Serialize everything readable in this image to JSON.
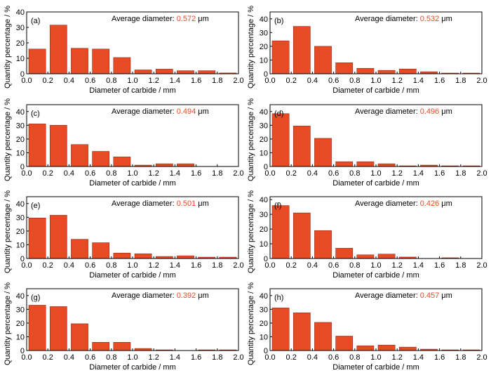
{
  "figure": {
    "bar_color": "#e84a24",
    "value_color": "#e84a24",
    "axis_color": "#000000"
  },
  "chart_data": [
    {
      "type": "bar",
      "panel_label": "(a)",
      "title": "",
      "xlabel": "Diameter of carbide / mm",
      "ylabel": "Quantity percentage / %",
      "xlim": [
        0,
        2.0
      ],
      "ylim": [
        0,
        40
      ],
      "bin_width": 0.2,
      "x": [
        0.1,
        0.3,
        0.5,
        0.7,
        0.9,
        1.1,
        1.3,
        1.5,
        1.7,
        1.9
      ],
      "values": [
        16,
        31.5,
        16.5,
        16,
        10.5,
        2.5,
        3,
        2,
        2,
        0.5
      ],
      "xticks": [
        "0.0",
        "0.2",
        "0.4",
        "0.6",
        "0.8",
        "1.0",
        "1.2",
        "1.4",
        "1.6",
        "1.8",
        "2.0"
      ],
      "yticks": [
        "0",
        "10",
        "20",
        "30",
        "40"
      ],
      "annotation": {
        "label": "Average diameter: ",
        "value": "0.572",
        "unit": "μm"
      }
    },
    {
      "type": "bar",
      "panel_label": "(b)",
      "title": "",
      "xlabel": "Diameter of carbide / mm",
      "ylabel": "Quantity percentage / %",
      "xlim": [
        0,
        2.0
      ],
      "ylim": [
        0,
        45
      ],
      "bin_width": 0.2,
      "x": [
        0.1,
        0.3,
        0.5,
        0.7,
        0.9,
        1.1,
        1.3,
        1.5,
        1.7,
        1.9
      ],
      "values": [
        24,
        34.5,
        20,
        8,
        4,
        2.5,
        3.5,
        1.5,
        0.5,
        0.5
      ],
      "xticks": [
        "0.0",
        "0.2",
        "0.4",
        "0.6",
        "0.8",
        "1.0",
        "1.2",
        "1.4",
        "1.6",
        "1.8",
        "2.0"
      ],
      "yticks": [
        "0",
        "10",
        "20",
        "30",
        "40"
      ],
      "annotation": {
        "label": "Average diameter: ",
        "value": "0.532",
        "unit": "μm"
      }
    },
    {
      "type": "bar",
      "panel_label": "(c)",
      "title": "",
      "xlabel": "Diameter of carbide / mm",
      "ylabel": "Quantity percentage / %",
      "xlim": [
        0,
        2.0
      ],
      "ylim": [
        0,
        45
      ],
      "bin_width": 0.2,
      "x": [
        0.1,
        0.3,
        0.5,
        0.7,
        0.9,
        1.1,
        1.3,
        1.5,
        1.7,
        1.9
      ],
      "values": [
        31,
        30,
        16,
        11,
        7,
        1,
        2,
        2,
        0,
        0
      ],
      "xticks": [
        "0.0",
        "0.2",
        "0.4",
        "0.6",
        "0.8",
        "1.0",
        "1.2",
        "1.4",
        "1.6",
        "1.8",
        "2.0"
      ],
      "yticks": [
        "0",
        "10",
        "20",
        "30",
        "40"
      ],
      "annotation": {
        "label": "Average diameter: ",
        "value": "0.494",
        "unit": "μm"
      }
    },
    {
      "type": "bar",
      "panel_label": "(d)",
      "title": "",
      "xlabel": "Diameter of carbide / mm",
      "ylabel": "Quantity percentage / %",
      "xlim": [
        0,
        2.0
      ],
      "ylim": [
        0,
        45
      ],
      "bin_width": 0.2,
      "x": [
        0.1,
        0.3,
        0.5,
        0.7,
        0.9,
        1.1,
        1.3,
        1.5,
        1.7,
        1.9
      ],
      "values": [
        38.5,
        29.5,
        20.5,
        3.5,
        3.5,
        2,
        0.5,
        1,
        0.5,
        0.5
      ],
      "xticks": [
        "0.0",
        "0.2",
        "0.4",
        "0.6",
        "0.8",
        "1.0",
        "1.2",
        "1.4",
        "1.6",
        "1.8",
        "2.0"
      ],
      "yticks": [
        "0",
        "10",
        "20",
        "30",
        "40"
      ],
      "annotation": {
        "label": "Average diameter: ",
        "value": "0.496",
        "unit": "μm"
      }
    },
    {
      "type": "bar",
      "panel_label": "(e)",
      "title": "",
      "xlabel": "Diameter of carbide / mm",
      "ylabel": "Quantity percentage / %",
      "xlim": [
        0,
        2.0
      ],
      "ylim": [
        0,
        45
      ],
      "bin_width": 0.2,
      "x": [
        0.1,
        0.3,
        0.5,
        0.7,
        0.9,
        1.1,
        1.3,
        1.5,
        1.7,
        1.9
      ],
      "values": [
        29.5,
        31.5,
        14,
        11.5,
        4,
        3.5,
        1.5,
        2,
        1,
        1
      ],
      "xticks": [
        "0.0",
        "0.2",
        "0.4",
        "0.6",
        "0.8",
        "1.0",
        "1.2",
        "1.4",
        "1.6",
        "1.8",
        "2.0"
      ],
      "yticks": [
        "0",
        "10",
        "20",
        "30",
        "40"
      ],
      "annotation": {
        "label": "Average diameter: ",
        "value": "0.501",
        "unit": "μm"
      }
    },
    {
      "type": "bar",
      "panel_label": "(f)",
      "title": "",
      "xlabel": "Diameter of carbide / mm",
      "ylabel": "Quantity percentage / %",
      "xlim": [
        0,
        2.0
      ],
      "ylim": [
        0,
        42
      ],
      "bin_width": 0.2,
      "x": [
        0.1,
        0.3,
        0.5,
        0.7,
        0.9,
        1.1,
        1.3,
        1.5,
        1.7,
        1.9
      ],
      "values": [
        36,
        31,
        19,
        7,
        2.5,
        3,
        1,
        0,
        0.5,
        0
      ],
      "xticks": [
        "0.0",
        "0.2",
        "0.4",
        "0.6",
        "0.8",
        "1.0",
        "1.2",
        "1.4",
        "1.6",
        "1.8",
        "2.0"
      ],
      "yticks": [
        "0",
        "10",
        "20",
        "30",
        "40"
      ],
      "annotation": {
        "label": "Average diameter: ",
        "value": "0.426",
        "unit": "μm"
      }
    },
    {
      "type": "bar",
      "panel_label": "(g)",
      "title": "",
      "xlabel": "Diameter of carbide / mm",
      "ylabel": "Quantity percentage / %",
      "xlim": [
        0,
        2.0
      ],
      "ylim": [
        0,
        45
      ],
      "bin_width": 0.2,
      "x": [
        0.1,
        0.3,
        0.5,
        0.7,
        0.9,
        1.1,
        1.3,
        1.5,
        1.7,
        1.9
      ],
      "values": [
        33,
        32,
        19.5,
        6,
        6,
        1.5,
        0.5,
        0,
        0.5,
        0.5
      ],
      "xticks": [
        "0.0",
        "0.2",
        "0.4",
        "0.6",
        "0.8",
        "1.0",
        "1.2",
        "1.4",
        "1.6",
        "1.8",
        "2.0"
      ],
      "yticks": [
        "0",
        "10",
        "20",
        "30",
        "40"
      ],
      "annotation": {
        "label": "Average diameter: ",
        "value": "0.392",
        "unit": "μm"
      }
    },
    {
      "type": "bar",
      "panel_label": "(h)",
      "title": "",
      "xlabel": "Diameter of carbide / mm",
      "ylabel": "Quantity percentage / %",
      "xlim": [
        0,
        2.0
      ],
      "ylim": [
        0,
        45
      ],
      "bin_width": 0.2,
      "x": [
        0.1,
        0.3,
        0.5,
        0.7,
        0.9,
        1.1,
        1.3,
        1.5,
        1.7,
        1.9
      ],
      "values": [
        31,
        27.5,
        20.5,
        10.5,
        3.5,
        4,
        2.5,
        1,
        0.5,
        0.5
      ],
      "xticks": [
        "0.0",
        "0.2",
        "0.4",
        "0.6",
        "0.8",
        "1.0",
        "1.2",
        "1.4",
        "1.6",
        "1.8",
        "2.0"
      ],
      "yticks": [
        "0",
        "10",
        "20",
        "30",
        "40"
      ],
      "annotation": {
        "label": "Average diameter: ",
        "value": "0.457",
        "unit": "μm"
      }
    }
  ]
}
